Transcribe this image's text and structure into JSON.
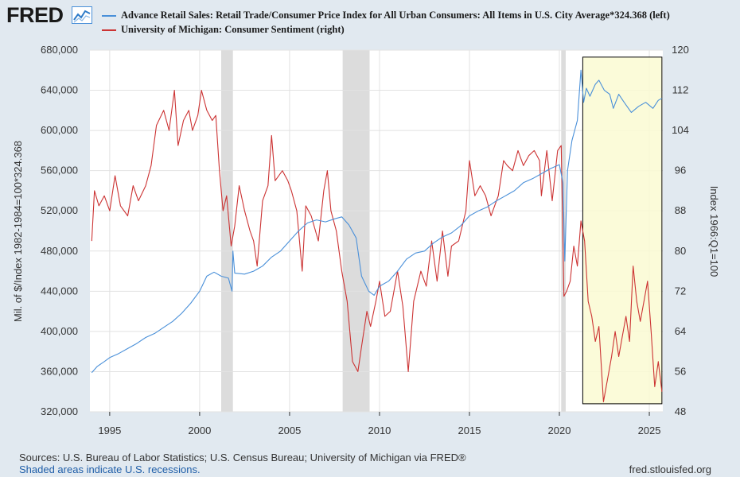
{
  "logo": {
    "text": "FRED",
    "icon": "line-chart-icon"
  },
  "chart_data": {
    "type": "line",
    "x_range": [
      1993.9,
      2025.75
    ],
    "x_ticks": [
      1995,
      2000,
      2005,
      2010,
      2015,
      2020,
      2025
    ],
    "left_axis": {
      "label": "Mil. of $/Index 1982-1984=100*324.368",
      "ylim": [
        320000,
        680000
      ],
      "ticks": [
        320000,
        360000,
        400000,
        440000,
        480000,
        520000,
        560000,
        600000,
        640000,
        680000
      ],
      "tick_labels": [
        "320,000",
        "360,000",
        "400,000",
        "440,000",
        "480,000",
        "520,000",
        "560,000",
        "600,000",
        "640,000",
        "680,000"
      ]
    },
    "right_axis": {
      "label": "Index 1966:Q1=100",
      "ylim": [
        48,
        120
      ],
      "ticks": [
        48,
        56,
        64,
        72,
        80,
        88,
        96,
        104,
        112,
        120
      ],
      "tick_labels": [
        "48",
        "56",
        "64",
        "72",
        "80",
        "88",
        "96",
        "104",
        "112",
        "120"
      ]
    },
    "recessions": [
      [
        2001.2,
        2001.85
      ],
      [
        2007.95,
        2009.45
      ],
      [
        2020.1,
        2020.35
      ]
    ],
    "highlight_box": {
      "x": [
        2021.3,
        2025.7
      ],
      "y_left": [
        328000,
        673000
      ],
      "fill": "#fafad2",
      "stroke": "#000000"
    },
    "series": [
      {
        "name": "Advance Retail Sales: Retail Trade/Consumer Price Index for All Urban Consumers: All Items in U.S. City Average*324.368 (left)",
        "axis": "left",
        "color": "#4a90d9",
        "points": [
          [
            1994.0,
            359000
          ],
          [
            1994.3,
            365000
          ],
          [
            1994.7,
            370000
          ],
          [
            1995.0,
            374000
          ],
          [
            1995.5,
            378000
          ],
          [
            1996.0,
            383000
          ],
          [
            1996.5,
            388000
          ],
          [
            1997.0,
            394000
          ],
          [
            1997.5,
            398000
          ],
          [
            1998.0,
            404000
          ],
          [
            1998.5,
            410000
          ],
          [
            1999.0,
            418000
          ],
          [
            1999.5,
            428000
          ],
          [
            2000.0,
            440000
          ],
          [
            2000.4,
            455000
          ],
          [
            2000.8,
            459000
          ],
          [
            2001.2,
            455000
          ],
          [
            2001.6,
            453000
          ],
          [
            2001.8,
            440000
          ],
          [
            2001.85,
            480000
          ],
          [
            2001.95,
            458000
          ],
          [
            2002.5,
            457000
          ],
          [
            2003.0,
            460000
          ],
          [
            2003.5,
            465000
          ],
          [
            2004.0,
            474000
          ],
          [
            2004.5,
            480000
          ],
          [
            2005.0,
            490000
          ],
          [
            2005.5,
            500000
          ],
          [
            2006.0,
            508000
          ],
          [
            2006.5,
            511000
          ],
          [
            2007.0,
            509000
          ],
          [
            2007.5,
            512000
          ],
          [
            2007.9,
            514000
          ],
          [
            2008.3,
            506000
          ],
          [
            2008.7,
            493000
          ],
          [
            2009.0,
            455000
          ],
          [
            2009.4,
            440000
          ],
          [
            2009.7,
            436000
          ],
          [
            2010.0,
            445000
          ],
          [
            2010.5,
            450000
          ],
          [
            2011.0,
            460000
          ],
          [
            2011.5,
            472000
          ],
          [
            2012.0,
            478000
          ],
          [
            2012.5,
            480000
          ],
          [
            2013.0,
            488000
          ],
          [
            2013.5,
            494000
          ],
          [
            2014.0,
            498000
          ],
          [
            2014.5,
            505000
          ],
          [
            2015.0,
            515000
          ],
          [
            2015.5,
            520000
          ],
          [
            2016.0,
            524000
          ],
          [
            2016.5,
            530000
          ],
          [
            2017.0,
            535000
          ],
          [
            2017.5,
            540000
          ],
          [
            2018.0,
            548000
          ],
          [
            2018.5,
            552000
          ],
          [
            2019.0,
            557000
          ],
          [
            2019.5,
            562000
          ],
          [
            2020.0,
            566000
          ],
          [
            2020.2,
            548000
          ],
          [
            2020.3,
            470000
          ],
          [
            2020.45,
            560000
          ],
          [
            2020.7,
            590000
          ],
          [
            2021.0,
            610000
          ],
          [
            2021.2,
            660000
          ],
          [
            2021.35,
            628000
          ],
          [
            2021.5,
            642000
          ],
          [
            2021.7,
            634000
          ],
          [
            2022.0,
            646000
          ],
          [
            2022.2,
            650000
          ],
          [
            2022.5,
            640000
          ],
          [
            2022.8,
            636000
          ],
          [
            2023.0,
            622000
          ],
          [
            2023.3,
            636000
          ],
          [
            2023.6,
            628000
          ],
          [
            2024.0,
            618000
          ],
          [
            2024.4,
            624000
          ],
          [
            2024.8,
            628000
          ],
          [
            2025.2,
            622000
          ],
          [
            2025.5,
            630000
          ],
          [
            2025.7,
            632000
          ]
        ]
      },
      {
        "name": "University of Michigan: Consumer Sentiment (right)",
        "axis": "right",
        "color": "#cc3333",
        "points": [
          [
            1994.0,
            82
          ],
          [
            1994.15,
            92
          ],
          [
            1994.4,
            89
          ],
          [
            1994.7,
            91
          ],
          [
            1995.0,
            88
          ],
          [
            1995.3,
            95
          ],
          [
            1995.6,
            89
          ],
          [
            1996.0,
            87
          ],
          [
            1996.3,
            93
          ],
          [
            1996.6,
            90
          ],
          [
            1997.0,
            93
          ],
          [
            1997.3,
            97
          ],
          [
            1997.6,
            105
          ],
          [
            1998.0,
            108
          ],
          [
            1998.3,
            104
          ],
          [
            1998.6,
            112
          ],
          [
            1998.8,
            101
          ],
          [
            1999.1,
            106
          ],
          [
            1999.4,
            108
          ],
          [
            1999.6,
            104
          ],
          [
            1999.9,
            107
          ],
          [
            2000.1,
            112
          ],
          [
            2000.4,
            108
          ],
          [
            2000.7,
            106
          ],
          [
            2000.9,
            107
          ],
          [
            2001.1,
            96
          ],
          [
            2001.3,
            88
          ],
          [
            2001.5,
            91
          ],
          [
            2001.75,
            81
          ],
          [
            2001.95,
            85
          ],
          [
            2002.2,
            93
          ],
          [
            2002.5,
            88
          ],
          [
            2002.8,
            84
          ],
          [
            2003.0,
            82
          ],
          [
            2003.2,
            77
          ],
          [
            2003.5,
            90
          ],
          [
            2003.8,
            93
          ],
          [
            2004.0,
            103
          ],
          [
            2004.2,
            94
          ],
          [
            2004.6,
            96
          ],
          [
            2004.9,
            94
          ],
          [
            2005.1,
            92
          ],
          [
            2005.4,
            88
          ],
          [
            2005.7,
            76
          ],
          [
            2005.9,
            89
          ],
          [
            2006.2,
            87
          ],
          [
            2006.6,
            82
          ],
          [
            2006.9,
            92
          ],
          [
            2007.1,
            96
          ],
          [
            2007.3,
            88
          ],
          [
            2007.6,
            84
          ],
          [
            2007.9,
            76
          ],
          [
            2008.2,
            70
          ],
          [
            2008.5,
            58
          ],
          [
            2008.8,
            56
          ],
          [
            2009.0,
            61
          ],
          [
            2009.3,
            68
          ],
          [
            2009.5,
            65
          ],
          [
            2009.8,
            70
          ],
          [
            2010.0,
            74
          ],
          [
            2010.3,
            67
          ],
          [
            2010.6,
            68
          ],
          [
            2011.0,
            76
          ],
          [
            2011.3,
            69
          ],
          [
            2011.6,
            56
          ],
          [
            2011.9,
            70
          ],
          [
            2012.3,
            76
          ],
          [
            2012.6,
            73
          ],
          [
            2012.9,
            82
          ],
          [
            2013.2,
            74
          ],
          [
            2013.5,
            84
          ],
          [
            2013.8,
            75
          ],
          [
            2014.0,
            81
          ],
          [
            2014.4,
            82
          ],
          [
            2014.8,
            88
          ],
          [
            2015.0,
            98
          ],
          [
            2015.3,
            91
          ],
          [
            2015.6,
            93
          ],
          [
            2015.9,
            91
          ],
          [
            2016.2,
            87
          ],
          [
            2016.6,
            91
          ],
          [
            2016.9,
            98
          ],
          [
            2017.1,
            97
          ],
          [
            2017.4,
            96
          ],
          [
            2017.7,
            100
          ],
          [
            2018.0,
            97
          ],
          [
            2018.3,
            99
          ],
          [
            2018.6,
            100
          ],
          [
            2018.9,
            98
          ],
          [
            2019.0,
            91
          ],
          [
            2019.3,
            100
          ],
          [
            2019.6,
            90
          ],
          [
            2019.9,
            100
          ],
          [
            2020.1,
            101
          ],
          [
            2020.25,
            71
          ],
          [
            2020.4,
            72
          ],
          [
            2020.6,
            74
          ],
          [
            2020.8,
            81
          ],
          [
            2021.0,
            77
          ],
          [
            2021.2,
            86
          ],
          [
            2021.4,
            82
          ],
          [
            2021.6,
            70
          ],
          [
            2021.8,
            67
          ],
          [
            2022.0,
            62
          ],
          [
            2022.2,
            65
          ],
          [
            2022.45,
            50
          ],
          [
            2022.7,
            55
          ],
          [
            2022.9,
            59
          ],
          [
            2023.1,
            64
          ],
          [
            2023.3,
            59
          ],
          [
            2023.5,
            63
          ],
          [
            2023.7,
            67
          ],
          [
            2023.9,
            62
          ],
          [
            2024.1,
            77
          ],
          [
            2024.3,
            70
          ],
          [
            2024.5,
            66
          ],
          [
            2024.7,
            70
          ],
          [
            2024.9,
            74
          ],
          [
            2025.1,
            64
          ],
          [
            2025.3,
            53
          ],
          [
            2025.5,
            58
          ],
          [
            2025.7,
            52
          ]
        ]
      }
    ]
  },
  "footer": {
    "sources": "Sources: U.S. Bureau of Labor Statistics; U.S. Census Bureau; University of Michigan via FRED®",
    "recessions_note": "Shaded areas indicate U.S. recessions.",
    "url": "fred.stlouisfed.org"
  }
}
